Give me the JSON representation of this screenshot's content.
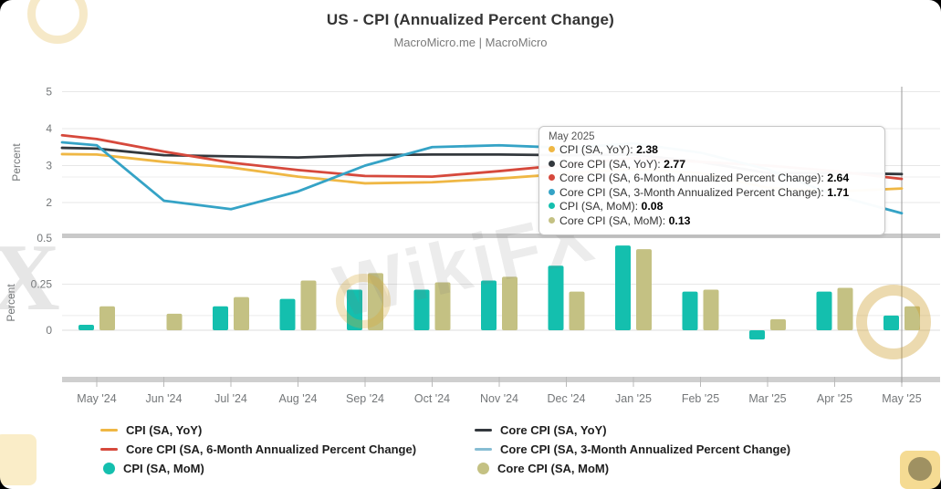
{
  "header": {
    "title": "US - CPI (Annualized Percent Change)",
    "subtitle": "MacroMicro.me | MacroMicro"
  },
  "chart_data": {
    "type": "line+bar",
    "categories": [
      "May '24",
      "Jun '24",
      "Jul '24",
      "Aug '24",
      "Sep '24",
      "Oct '24",
      "Nov '24",
      "Dec '24",
      "Jan '25",
      "Feb '25",
      "Mar '25",
      "Apr '25",
      "May '25"
    ],
    "top_pane": {
      "ylabel": "Percent",
      "yticks": [
        "5",
        "4",
        "3",
        "2"
      ],
      "ytick_values": [
        5,
        4,
        3,
        2
      ],
      "ylim": [
        1.2,
        5.2
      ],
      "reference_line": 2.69,
      "series": [
        {
          "name": "CPI (SA, YoY)",
          "color": "#efb744",
          "edge": 3.31,
          "values": [
            3.3,
            3.1,
            2.95,
            2.7,
            2.52,
            2.55,
            2.65,
            2.78,
            2.9,
            2.8,
            2.4,
            2.3,
            2.38
          ]
        },
        {
          "name": "Core CPI (SA, YoY)",
          "color": "#33383d",
          "edge": 3.48,
          "values": [
            3.46,
            3.28,
            3.25,
            3.22,
            3.28,
            3.3,
            3.3,
            3.28,
            3.3,
            3.1,
            2.8,
            2.8,
            2.77
          ]
        },
        {
          "name": "Core CPI (SA, 6-Month Annualized Percent Change)",
          "color": "#d6493c",
          "edge": 3.82,
          "values": [
            3.72,
            3.38,
            3.08,
            2.88,
            2.72,
            2.7,
            2.85,
            3.02,
            3.2,
            3.1,
            3.0,
            2.85,
            2.64
          ]
        },
        {
          "name": "Core CPI (SA, 3-Month Annualized Percent Change)",
          "color": "#35a3c6",
          "edge": 3.63,
          "values": [
            3.55,
            2.05,
            1.82,
            2.3,
            3.0,
            3.5,
            3.55,
            3.48,
            3.6,
            3.35,
            2.9,
            2.2,
            1.71
          ]
        }
      ]
    },
    "bottom_pane": {
      "ylabel": "Percent",
      "yticks": [
        "0.5",
        "0.25",
        "0"
      ],
      "ytick_values": [
        0.5,
        0.25,
        0
      ],
      "ylim": [
        -0.27,
        0.52
      ],
      "reference_line": 0.08,
      "series": [
        {
          "name": "CPI (SA, MoM)",
          "color": "#14bfae",
          "values": [
            0.03,
            0.0,
            0.13,
            0.17,
            0.22,
            0.22,
            0.27,
            0.35,
            0.46,
            0.21,
            -0.05,
            0.21,
            0.08
          ]
        },
        {
          "name": "Core CPI (SA, MoM)",
          "color": "#c4c183",
          "values": [
            0.13,
            0.09,
            0.18,
            0.27,
            0.31,
            0.26,
            0.29,
            0.21,
            0.44,
            0.22,
            0.06,
            0.23,
            0.13
          ]
        }
      ]
    },
    "crosshair_category": "May '25"
  },
  "tooltip": {
    "header": "May 2025",
    "rows": [
      {
        "label": "CPI (SA, YoY)",
        "value": "2.38",
        "color": "#efb744"
      },
      {
        "label": "Core CPI (SA, YoY)",
        "value": "2.77",
        "color": "#33383d"
      },
      {
        "label": "Core CPI (SA, 6-Month Annualized Percent Change)",
        "value": "2.64",
        "color": "#d6493c"
      },
      {
        "label": "Core CPI (SA, 3-Month Annualized Percent Change)",
        "value": "1.71",
        "color": "#35a3c6"
      },
      {
        "label": "CPI (SA, MoM)",
        "value": "0.08",
        "color": "#14bfae"
      },
      {
        "label": "Core CPI (SA, MoM)",
        "value": "0.13",
        "color": "#c4c183"
      }
    ]
  },
  "legend": {
    "columns": [
      [
        {
          "type": "line",
          "color": "#efb744",
          "label": "CPI (SA, YoY)"
        },
        {
          "type": "line",
          "color": "#d6493c",
          "label": "Core CPI (SA, 6-Month Annualized Percent Change)"
        },
        {
          "type": "circle",
          "color": "#14bfae",
          "label": "CPI (SA, MoM)"
        }
      ],
      [
        {
          "type": "line",
          "color": "#33383d",
          "label": "Core CPI (SA, YoY)"
        },
        {
          "type": "line",
          "color": "#87bdd3",
          "label": "Core CPI (SA, 3-Month Annualized Percent Change)"
        },
        {
          "type": "circle",
          "color": "#c4c183",
          "label": "Core CPI (SA, MoM)"
        }
      ]
    ]
  },
  "watermarks": {
    "x_text": "X",
    "wikifx_text": "WikiFX"
  }
}
